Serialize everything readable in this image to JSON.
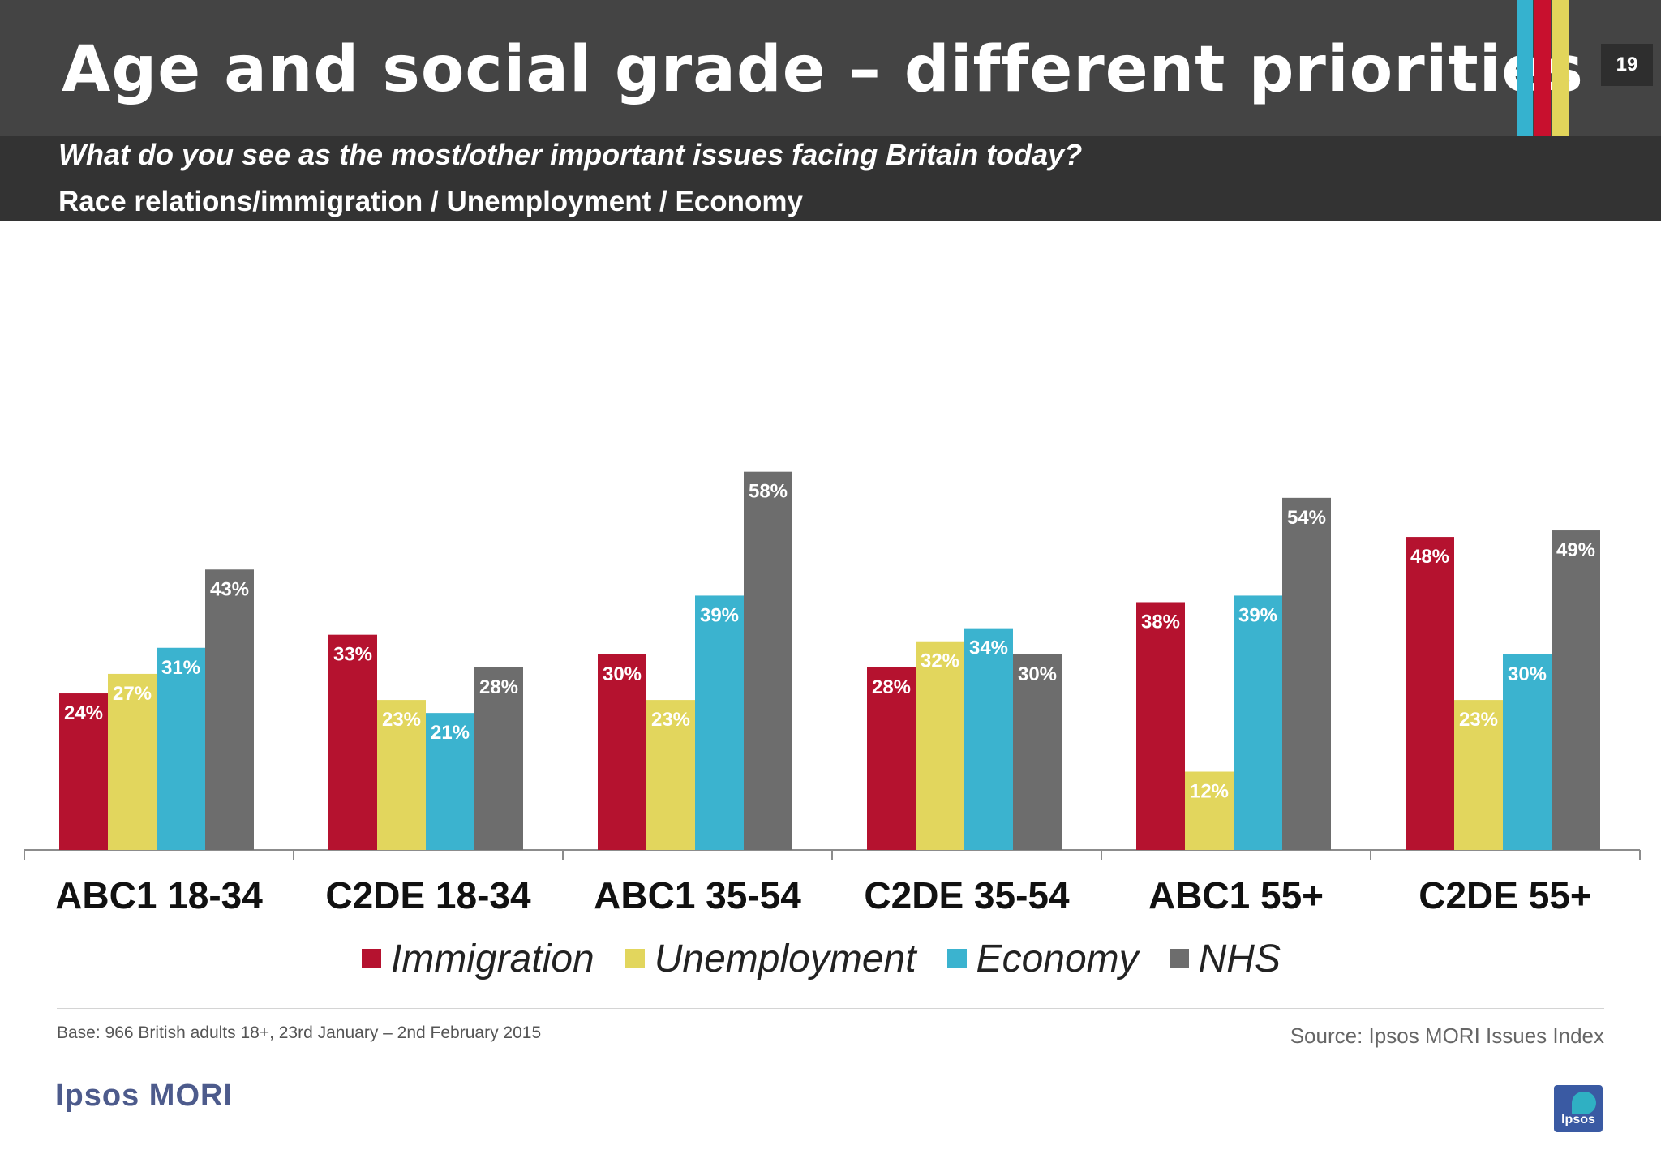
{
  "header": {
    "title": "Age and social grade – different priorities",
    "page_number": "19",
    "question": "What do you see as the most/other important issues facing Britain today?",
    "subtitle": "Race relations/immigration / Unemployment / Economy",
    "stripe_colors": [
      "#35b2cf",
      "#c8102e",
      "#e2d55b"
    ]
  },
  "chart_data": {
    "type": "bar",
    "categories": [
      "ABC1 18-34",
      "C2DE 18-34",
      "ABC1 35-54",
      "C2DE 35-54",
      "ABC1 55+",
      "C2DE 55+"
    ],
    "series": [
      {
        "name": "Immigration",
        "color": "#b5122f",
        "values": [
          24,
          33,
          30,
          28,
          38,
          48
        ],
        "labels": [
          "24%",
          "33%",
          "30%",
          "28%",
          "38%",
          "48%"
        ]
      },
      {
        "name": "Unemployment",
        "color": "#e2d65d",
        "values": [
          27,
          23,
          23,
          32,
          12,
          23
        ],
        "labels": [
          "27%",
          "23%",
          "23%",
          "32%",
          "12%",
          "23%"
        ]
      },
      {
        "name": "Economy",
        "color": "#3bb3cf",
        "values": [
          31,
          21,
          39,
          34,
          39,
          30
        ],
        "labels": [
          "31%",
          "21%",
          "39%",
          "34%",
          "39%",
          "30%"
        ]
      },
      {
        "name": "NHS",
        "color": "#6d6d6d",
        "values": [
          43,
          28,
          58,
          30,
          54,
          49
        ],
        "labels": [
          "43%",
          "28%",
          "58%",
          "30%",
          "54%",
          "49%"
        ]
      }
    ],
    "ylim": [
      0,
      60
    ],
    "grid": false,
    "legend_position": "bottom"
  },
  "footer": {
    "base": "Base: 966 British adults 18+, 23rd January – 2nd February 2015",
    "source": "Source: Ipsos MORI  Issues Index",
    "logo_text": "Ipsos MORI",
    "badge_text": "Ipsos"
  }
}
